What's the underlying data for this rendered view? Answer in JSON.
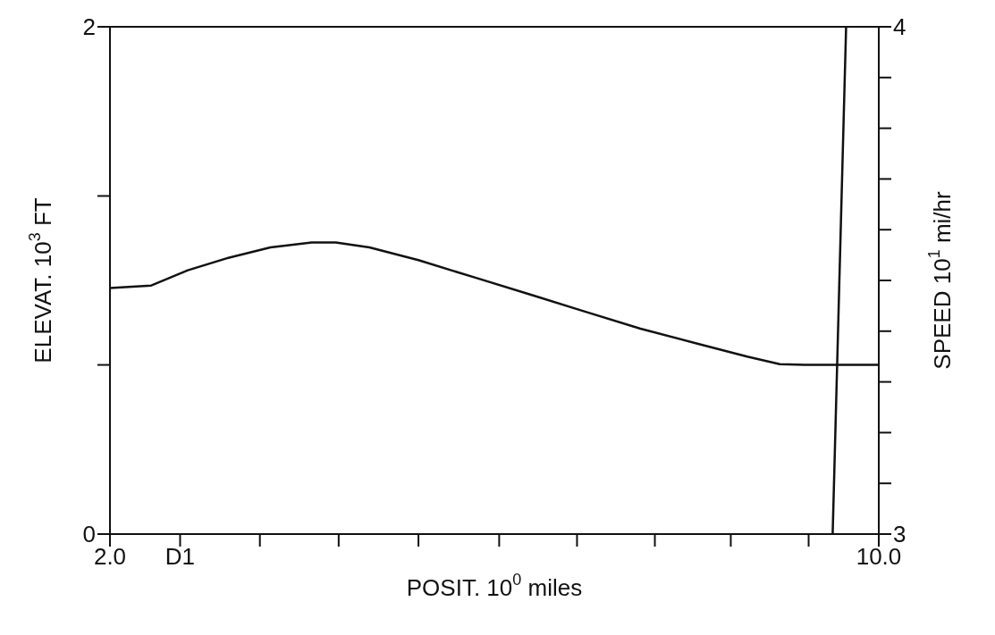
{
  "chart_data": {
    "type": "line",
    "xlabel": "POSIT. 10$^{0}$ miles",
    "ylabel": "ELEVAT. 10$^{3}$ FT",
    "y2label": "SPEED 10$^{1}$ mi/hr",
    "xlim": [
      2,
      10
    ],
    "xticks": [
      {
        "value": 2,
        "label": "2.0"
      },
      {
        "value": 2.73,
        "label": "D1"
      },
      {
        "value": 3.56,
        "label": null
      },
      {
        "value": 4.38,
        "label": null
      },
      {
        "value": 5.21,
        "label": null
      },
      {
        "value": 6.05,
        "label": null
      },
      {
        "value": 6.86,
        "label": null
      },
      {
        "value": 7.67,
        "label": null
      },
      {
        "value": 8.46,
        "label": null
      },
      {
        "value": 9.27,
        "label": null
      },
      {
        "value": 10,
        "label": "10.0"
      }
    ],
    "ylim": [
      0,
      2
    ],
    "yticks": [
      0,
      {
        "value": 0.667,
        "label": null
      },
      {
        "value": 1.333,
        "label": null
      },
      2
    ],
    "y2lim": [
      3,
      4
    ],
    "y2ticks": [
      3,
      {
        "value": 3.1,
        "label": null
      },
      {
        "value": 3.2,
        "label": null
      },
      {
        "value": 3.3,
        "label": null
      },
      {
        "value": 3.4,
        "label": null
      },
      {
        "value": 3.5,
        "label": null
      },
      {
        "value": 3.6,
        "label": null
      },
      {
        "value": 3.7,
        "label": null
      },
      {
        "value": 3.8,
        "label": null
      },
      {
        "value": 3.9,
        "label": null
      },
      4
    ],
    "marker": "none",
    "series": [
      {
        "color": "#111111",
        "x": [
          2,
          2.43,
          2.81,
          3.24,
          3.67,
          4.1,
          4.35,
          4.7,
          5.21,
          5.81,
          6.41,
          6.92,
          7.52,
          8.12,
          8.63,
          8.97,
          9.23,
          9.53,
          10
        ],
        "values": [
          0.97,
          0.98,
          1.04,
          1.09,
          1.13,
          1.15,
          1.15,
          1.13,
          1.08,
          1.01,
          0.94,
          0.88,
          0.81,
          0.75,
          0.7,
          0.67,
          0.667,
          0.667,
          0.667
        ]
      },
      {
        "color": "#111111",
        "axis": "y2",
        "x": [
          9.52,
          9.66
        ],
        "values": [
          3,
          4
        ]
      }
    ]
  }
}
